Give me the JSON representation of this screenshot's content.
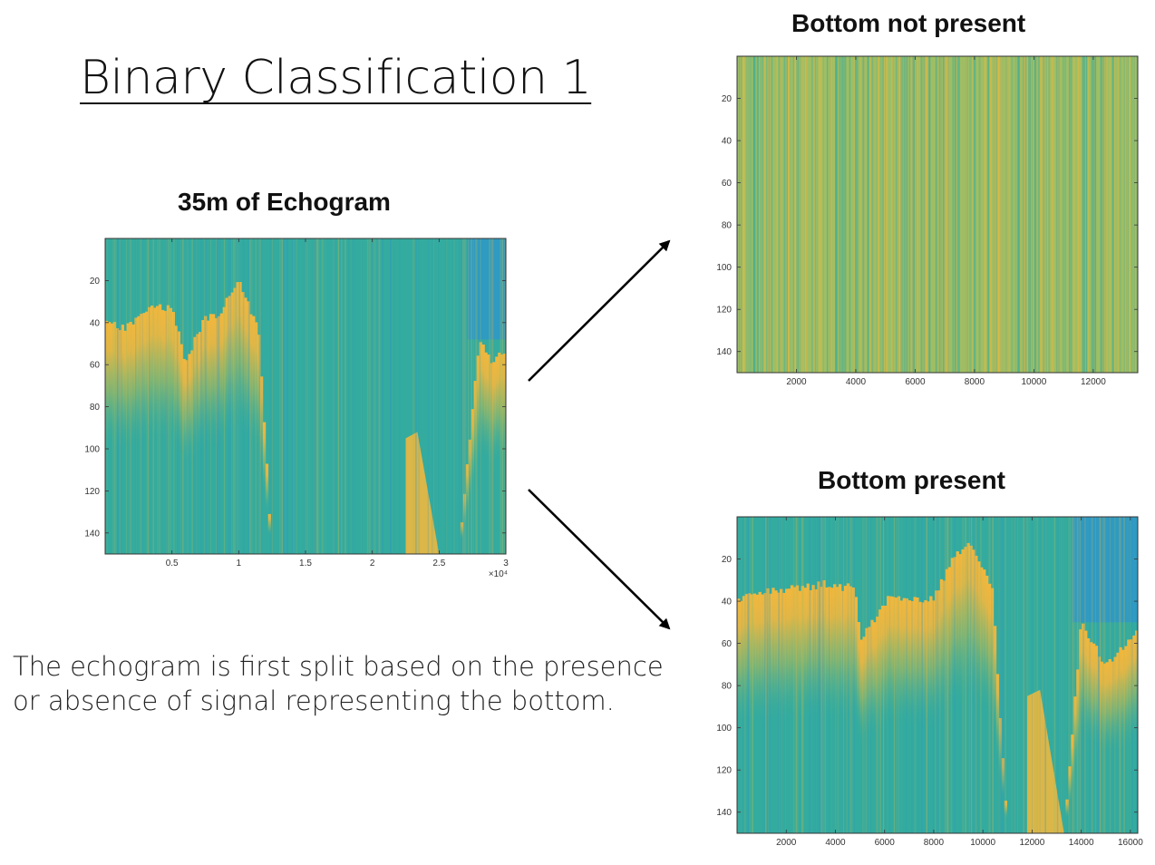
{
  "slide": {
    "title": "Binary Classification 1",
    "caption_lines": [
      "The echogram is first split based on the presence",
      "or absence of signal representing the bottom."
    ]
  },
  "colors": {
    "water": "#33ab9f",
    "deep": "#2f96c8",
    "signal": "#f2b73c",
    "noise": "#9fbe63",
    "arrow": "#000000"
  },
  "chart_data": [
    {
      "type": "heatmap",
      "title": "35m of Echogram",
      "xlim": [
        0,
        30000
      ],
      "ylim": [
        150,
        0
      ],
      "x_ticks": [
        5000,
        10000,
        15000,
        20000,
        25000,
        30000
      ],
      "x_tick_labels": [
        "0.5",
        "1",
        "1.5",
        "2",
        "2.5",
        "3"
      ],
      "x_multiplier_label": "×10⁴",
      "y_ticks": [
        20,
        40,
        60,
        80,
        100,
        120,
        140
      ],
      "y_tick_labels": [
        "20",
        "40",
        "60",
        "80",
        "100",
        "120",
        "140"
      ],
      "bottom_depth_profile": {
        "x": [
          0,
          1500,
          3500,
          5000,
          6000,
          7500,
          8500,
          10000,
          11500,
          12500,
          26500,
          28000,
          29000,
          30000
        ],
        "depth": [
          40,
          43,
          32,
          34,
          58,
          38,
          36,
          20,
          45,
          150,
          150,
          48,
          60,
          52
        ]
      },
      "secondary_returns": [
        {
          "x_start": 22500,
          "x_end": 25000,
          "depth_start": 95,
          "depth_end": 150
        }
      ]
    },
    {
      "type": "heatmap",
      "title": "Bottom not present",
      "xlim": [
        0,
        13500
      ],
      "ylim": [
        150,
        0
      ],
      "x_ticks": [
        2000,
        4000,
        6000,
        8000,
        10000,
        12000
      ],
      "x_tick_labels": [
        "2000",
        "4000",
        "6000",
        "8000",
        "10000",
        "12000"
      ],
      "y_ticks": [
        20,
        40,
        60,
        80,
        100,
        120,
        140
      ],
      "y_tick_labels": [
        "20",
        "40",
        "60",
        "80",
        "100",
        "120",
        "140"
      ]
    },
    {
      "type": "heatmap",
      "title": "Bottom present",
      "xlim": [
        0,
        16300
      ],
      "ylim": [
        150,
        0
      ],
      "x_ticks": [
        2000,
        4000,
        6000,
        8000,
        10000,
        12000,
        14000,
        16000
      ],
      "x_tick_labels": [
        "2000",
        "4000",
        "6000",
        "8000",
        "10000",
        "12000",
        "14000",
        "16000"
      ],
      "y_ticks": [
        20,
        40,
        60,
        80,
        100,
        120,
        140
      ],
      "y_tick_labels": [
        "20",
        "40",
        "60",
        "80",
        "100",
        "120",
        "140"
      ],
      "bottom_depth_profile": {
        "x": [
          0,
          1000,
          3500,
          4800,
          5000,
          6200,
          6800,
          8000,
          8800,
          9500,
          10400,
          11000,
          13300,
          14000,
          15000,
          16300
        ],
        "depth": [
          40,
          36,
          32,
          34,
          58,
          38,
          40,
          38,
          20,
          12,
          36,
          150,
          150,
          50,
          70,
          55
        ]
      },
      "secondary_returns": [
        {
          "x_start": 11800,
          "x_end": 13300,
          "depth_start": 85,
          "depth_end": 150
        }
      ]
    }
  ]
}
